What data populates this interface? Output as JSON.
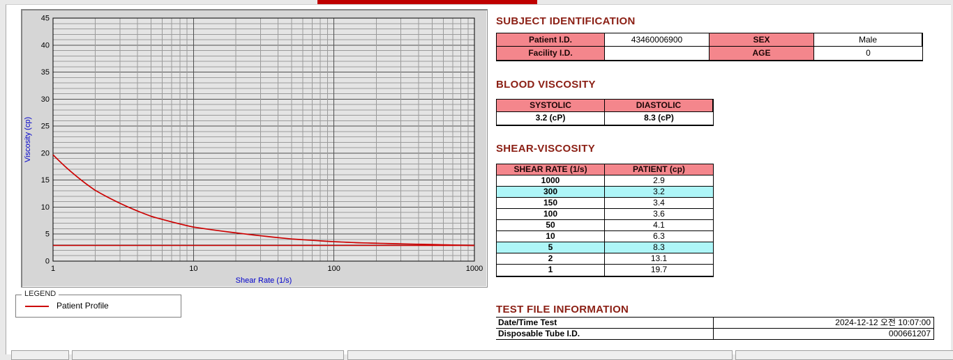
{
  "page": {
    "titlebar_color": "#bf0000",
    "accent_pink": "#f4868c",
    "accent_cyan": "#aef6f8",
    "heading_color": "#8b1f14"
  },
  "subject": {
    "title": "SUBJECT IDENTIFICATION",
    "patient_id_label": "Patient I.D.",
    "patient_id_value": "43460006900",
    "sex_label": "SEX",
    "sex_value": "Male",
    "facility_id_label": "Facility I.D.",
    "facility_id_value": "",
    "age_label": "AGE",
    "age_value": "0"
  },
  "blood": {
    "title": "BLOOD VISCOSITY",
    "col1": "SYSTOLIC",
    "col2": "DIASTOLIC",
    "val1": "3.2 (cP)",
    "val2": "8.3 (cP)"
  },
  "shear": {
    "title": "SHEAR-VISCOSITY",
    "col1": "SHEAR RATE (1/s)",
    "col2": "PATIENT (cp)",
    "rows": [
      {
        "rate": "1000",
        "cp": "2.9",
        "highlight": false
      },
      {
        "rate": "300",
        "cp": "3.2",
        "highlight": true
      },
      {
        "rate": "150",
        "cp": "3.4",
        "highlight": false
      },
      {
        "rate": "100",
        "cp": "3.6",
        "highlight": false
      },
      {
        "rate": "50",
        "cp": "4.1",
        "highlight": false
      },
      {
        "rate": "10",
        "cp": "6.3",
        "highlight": false
      },
      {
        "rate": "5",
        "cp": "8.3",
        "highlight": true
      },
      {
        "rate": "2",
        "cp": "13.1",
        "highlight": false
      },
      {
        "rate": "1",
        "cp": "19.7",
        "highlight": false
      }
    ]
  },
  "testfile": {
    "title": "TEST FILE INFORMATION",
    "rows": [
      {
        "label": "Date/Time Test",
        "value": "2024-12-12  오전 10:07:00"
      },
      {
        "label": "Disposable Tube I.D.",
        "value": "000661207"
      }
    ]
  },
  "legend": {
    "title": "LEGEND",
    "series_label": "Patient Profile"
  },
  "chart_data": {
    "type": "line",
    "title": "",
    "xlabel": "Shear Rate (1/s)",
    "ylabel": "Viscosity (cp)",
    "x_scale": "log",
    "xlim": [
      1,
      1000
    ],
    "ylim": [
      0,
      45
    ],
    "x_ticks": [
      1,
      10,
      100,
      1000
    ],
    "y_ticks": [
      0,
      5,
      10,
      15,
      20,
      25,
      30,
      35,
      40,
      45
    ],
    "grid": "dense: horizontal every 1 cp (major every 5), vertical log minor 2-9 per decade",
    "legend_position": "below-left",
    "series": [
      {
        "name": "Patient Profile",
        "color": "#cc0000",
        "x": [
          1,
          2,
          5,
          10,
          50,
          100,
          150,
          300,
          1000
        ],
        "y": [
          19.7,
          13.1,
          8.3,
          6.3,
          4.1,
          3.6,
          3.4,
          3.2,
          2.9
        ]
      }
    ],
    "baseline": {
      "y": 2.9,
      "color": "#cc0000"
    }
  }
}
